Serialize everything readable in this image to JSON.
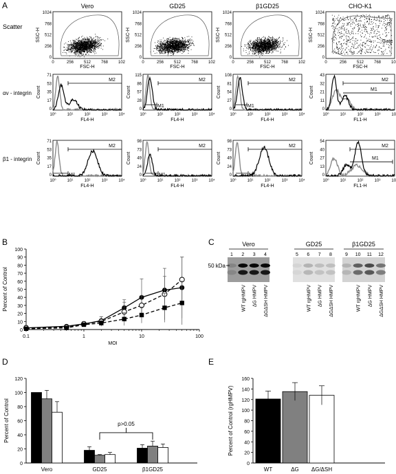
{
  "panel_letters": {
    "a": "A",
    "b": "B",
    "c": "C",
    "d": "D",
    "e": "E"
  },
  "flow": {
    "columns": [
      {
        "title": "Vero",
        "kind": "vero"
      },
      {
        "title": "GD25",
        "kind": "gd25"
      },
      {
        "title": "β1GD25",
        "kind": "b1gd25"
      },
      {
        "title": "CHO-K1",
        "kind": "cho"
      }
    ],
    "rows": [
      {
        "label": "Scatter",
        "type": "scatter"
      },
      {
        "label": "αv - integrin",
        "type": "hist"
      },
      {
        "label": "β1 - integrin",
        "type": "hist"
      }
    ],
    "scatter_axes": {
      "xlabel": "FSC-H",
      "ylabel": "SSC-H",
      "xticks": [
        "0",
        "256",
        "512",
        "768",
        "102"
      ],
      "yticks": [
        "1024",
        "768",
        "512",
        "256",
        "0"
      ],
      "gate_label": "Gate"
    },
    "hist_xticks": [
      "10⁰",
      "10¹",
      "10²",
      "10³",
      "10⁴"
    ],
    "hist_ylabel": "Count",
    "hist_xlabels": [
      [
        "FL4-H",
        "FL4-H",
        "FL4-H",
        "FL1-H"
      ],
      [
        "FL4-H",
        "FL4-H",
        "FL4-H",
        "FL1-H"
      ]
    ],
    "hist_yticks": [
      [
        [
          "71",
          "53",
          "35",
          "17",
          "0"
        ],
        [
          "115",
          "86",
          "57",
          "28",
          "0"
        ],
        [
          "108",
          "81",
          "54",
          "27",
          "0"
        ],
        [
          "43",
          "32",
          "21",
          "11",
          "0"
        ]
      ],
      [
        [
          "71",
          "53",
          "35",
          "17",
          "0"
        ],
        [
          "98",
          "73",
          "49",
          "24",
          "0"
        ],
        [
          "98",
          "73",
          "49",
          "24",
          "0"
        ],
        [
          "54",
          "40",
          "27",
          "13",
          "0"
        ]
      ]
    ],
    "marker_m1": "M1",
    "marker_m2": "M2"
  },
  "chart_data": [
    {
      "id": "B",
      "type": "line",
      "xscale": "log",
      "xlim": [
        0.1,
        100
      ],
      "ylim": [
        0,
        100
      ],
      "xlabel": "MOI",
      "ylabel": "Percent of Control",
      "xticks": [
        "0.1",
        "1",
        "10",
        "100"
      ],
      "yticks": [
        "0",
        "10",
        "20",
        "30",
        "40",
        "50",
        "60",
        "70",
        "80",
        "90",
        "100"
      ],
      "series": [
        {
          "marker": "filled-circle",
          "line": "solid",
          "x": [
            0.1,
            0.5,
            1,
            2,
            5,
            10,
            25,
            50
          ],
          "y": [
            2,
            4,
            7,
            11,
            27,
            40,
            49,
            52
          ],
          "err": [
            3,
            2,
            2,
            5,
            10,
            23,
            17,
            38
          ]
        },
        {
          "marker": "open-circle",
          "line": "dashed",
          "x": [
            0.1,
            0.5,
            1,
            2,
            5,
            10,
            25,
            50
          ],
          "y": [
            2,
            3,
            7,
            10,
            22,
            30,
            44,
            62
          ],
          "err": [
            3,
            2,
            3,
            6,
            12,
            12,
            32,
            28
          ]
        },
        {
          "marker": "filled-square",
          "line": "dashed",
          "x": [
            0.1,
            0.5,
            1,
            2,
            5,
            10,
            25,
            50
          ],
          "y": [
            1,
            2,
            6,
            8,
            13,
            18,
            27,
            33
          ],
          "err": [
            2,
            2,
            2,
            3,
            8,
            10,
            18,
            27
          ]
        }
      ]
    },
    {
      "id": "D",
      "type": "bar",
      "ylabel": "Percent of Control",
      "ylim": [
        0,
        120
      ],
      "yticks": [
        "0",
        "20",
        "40",
        "60",
        "80",
        "100",
        "120"
      ],
      "categories": [
        "Vero",
        "GD25",
        "β1GD25"
      ],
      "annotation": "p>0.05",
      "series": [
        {
          "fill": "#000000",
          "values": [
            100,
            18,
            21
          ],
          "err": [
            0,
            5,
            5
          ]
        },
        {
          "fill": "#808080",
          "values": [
            91,
            11,
            24
          ],
          "err": [
            12,
            1,
            7
          ]
        },
        {
          "fill": "#ffffff",
          "values": [
            72,
            12,
            22
          ],
          "err": [
            15,
            3,
            5
          ]
        }
      ]
    },
    {
      "id": "E",
      "type": "bar",
      "ylabel": "Percent of Control (rgHMPV)",
      "ylim": [
        0,
        160
      ],
      "yticks": [
        "0",
        "20",
        "40",
        "60",
        "80",
        "100",
        "120",
        "140",
        "160"
      ],
      "categories": [
        "WT",
        "ΔG",
        "ΔG/ΔSH"
      ],
      "series": [
        {
          "colors": [
            "#000000",
            "#808080",
            "#ffffff"
          ],
          "values": [
            121,
            135,
            128
          ],
          "err": [
            15,
            17,
            18
          ]
        }
      ]
    }
  ],
  "blot": {
    "groups": [
      "Vero",
      "GD25",
      "β1GD25"
    ],
    "lanes": [
      "1",
      "2",
      "3",
      "4",
      "5",
      "6",
      "7",
      "8",
      "9",
      "10",
      "11",
      "12"
    ],
    "size_marker": "50 kDa",
    "lane_labels": [
      "WT rgHMPV",
      "ΔG HMPV",
      "ΔGΔSH HMPV"
    ]
  }
}
